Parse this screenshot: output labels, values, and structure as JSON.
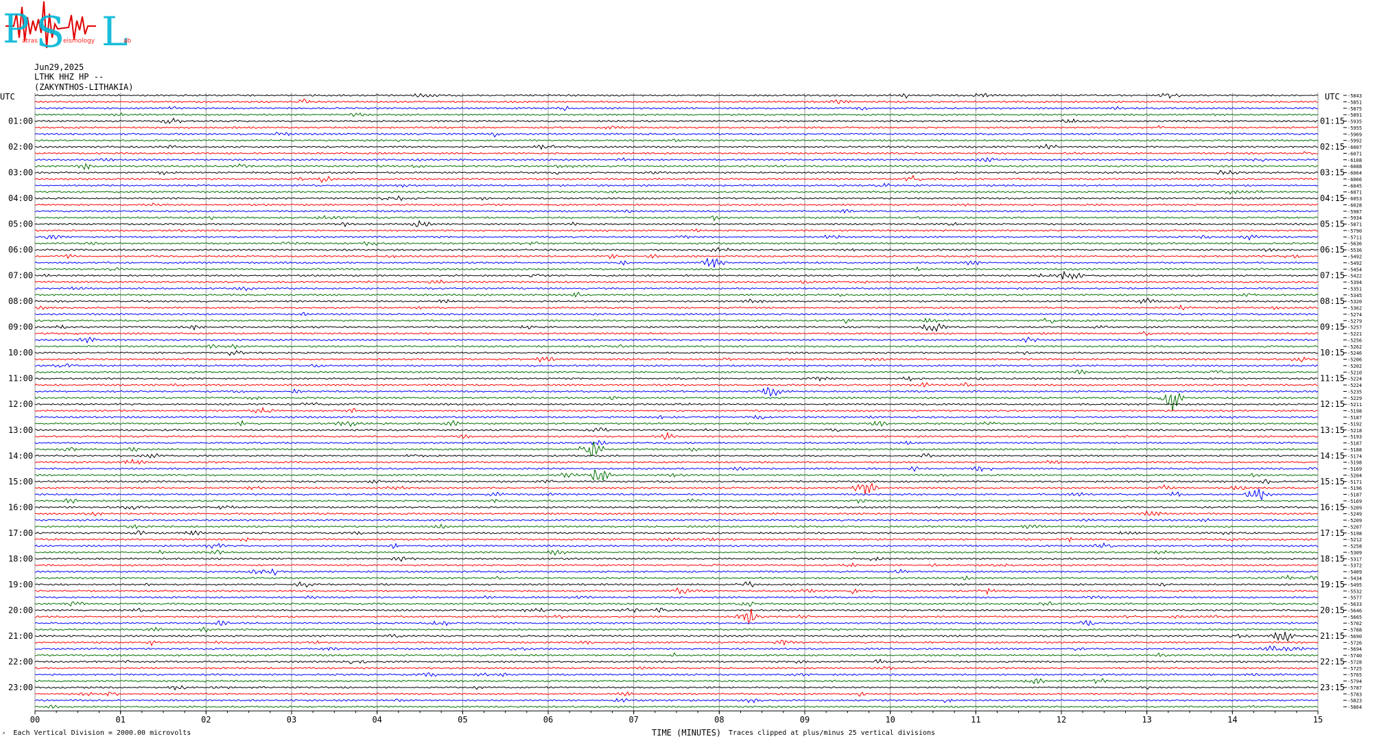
{
  "logo": {
    "letters": [
      "P",
      "S",
      "L"
    ],
    "small_text": [
      "atras",
      "eismology",
      "ab"
    ],
    "colors": {
      "primary": "#00b6d6",
      "secondary": "#ff2020",
      "accent": "#e00000"
    }
  },
  "header": {
    "date": "Jun29,2025",
    "station": "LTHK HHZ HP --",
    "location": "(ZAKYNTHOS-LITHAKIA)"
  },
  "axis_labels": {
    "left_title": "UTC",
    "right_title": "UTC"
  },
  "footer": {
    "scale_note": "Each Vertical Division = 2000.00 microvolts",
    "time_label": "TIME (MINUTES)",
    "clip_note": "Traces clipped at plus/minus 25 vertical divisions"
  },
  "chart_data": {
    "type": "line",
    "title": "",
    "xlabel": "TIME (MINUTES)",
    "ylabel": "UTC",
    "x_range": [
      0,
      15
    ],
    "x_tick_labels": [
      "00",
      "01",
      "02",
      "03",
      "04",
      "05",
      "06",
      "07",
      "08",
      "09",
      "10",
      "11",
      "12",
      "13",
      "14",
      "15"
    ],
    "left_hour_labels": [
      "01:00",
      "02:00",
      "03:00",
      "04:00",
      "05:00",
      "06:00",
      "07:00",
      "08:00",
      "09:00",
      "10:00",
      "11:00",
      "12:00",
      "13:00",
      "14:00",
      "15:00",
      "16:00",
      "17:00",
      "18:00",
      "19:00",
      "20:00",
      "21:00",
      "22:00",
      "23:00"
    ],
    "right_hour_labels": [
      "01:15",
      "02:15",
      "03:15",
      "04:15",
      "05:15",
      "06:15",
      "07:15",
      "08:15",
      "09:15",
      "10:15",
      "11:15",
      "12:15",
      "13:15",
      "14:15",
      "15:15",
      "16:15",
      "17:15",
      "18:15",
      "19:15",
      "20:15",
      "21:15",
      "22:15",
      "23:15"
    ],
    "trace_minutes": 15,
    "trace_count": 96,
    "trace_colors": [
      "#000000",
      "#ff0000",
      "#0000ff",
      "#007000"
    ],
    "right_offsets": [
      -5843,
      -5851,
      -5875,
      -5891,
      -5935,
      -5955,
      -5969,
      -5992,
      -6007,
      -6071,
      -6108,
      -6088,
      -6064,
      -6066,
      -6045,
      -6071,
      -6053,
      -6028,
      -5987,
      -5934,
      -5871,
      -5790,
      -5711,
      -5636,
      -5536,
      -5492,
      -5492,
      -5454,
      -5422,
      -5394,
      -5351,
      -5345,
      -5320,
      -5362,
      -5274,
      -5279,
      -5257,
      -5221,
      -5256,
      -5262,
      -5246,
      -5206,
      -5202,
      -5210,
      -5224,
      -5224,
      -5235,
      -5229,
      -5211,
      -5198,
      -5187,
      -5192,
      -5218,
      -5193,
      -5187,
      -5188,
      -5174,
      -5198,
      -5169,
      -5204,
      -5171,
      -5196,
      -5187,
      -5169,
      -5209,
      -5249,
      -5209,
      -5207,
      -5198,
      -5212,
      -5258,
      -5309,
      -5317,
      -5372,
      -5409,
      -5434,
      -5495,
      -5532,
      -5577,
      -5633,
      -5646,
      -5665,
      -5702,
      -5788,
      -5690,
      -5726,
      -5694,
      -5740,
      -5728,
      -5725,
      -5765,
      -5794,
      -5787,
      -5783,
      -5823,
      -5864
    ],
    "events": [
      {
        "minute": 6.5,
        "trace": 55,
        "amplitude": 3.0
      },
      {
        "minute": 6.6,
        "trace": 59,
        "amplitude": 3.0
      },
      {
        "minute": 13.3,
        "trace": 47,
        "amplitude": 4.0
      },
      {
        "minute": 8.35,
        "trace": 81,
        "amplitude": 2.5
      },
      {
        "minute": 9.7,
        "trace": 61,
        "amplitude": 2.0
      },
      {
        "minute": 14.3,
        "trace": 62,
        "amplitude": 1.8
      },
      {
        "minute": 14.6,
        "trace": 84,
        "amplitude": 1.8
      },
      {
        "minute": 12.1,
        "trace": 28,
        "amplitude": 1.5
      },
      {
        "minute": 7.95,
        "trace": 26,
        "amplitude": 1.6
      },
      {
        "minute": 10.5,
        "trace": 36,
        "amplitude": 1.5
      },
      {
        "minute": 8.6,
        "trace": 46,
        "amplitude": 1.5
      }
    ],
    "grid": true,
    "legend": "none"
  }
}
